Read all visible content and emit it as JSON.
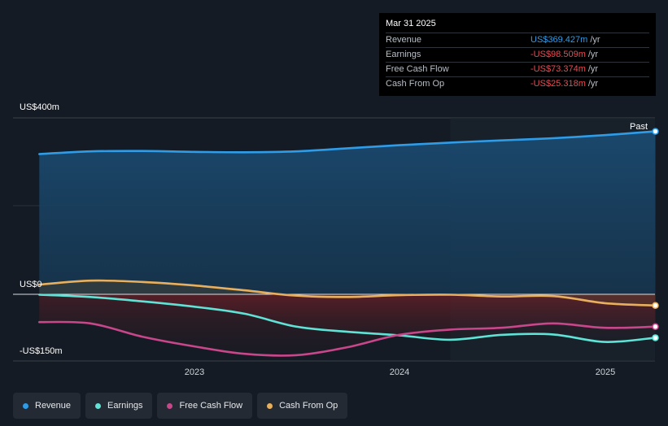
{
  "tooltip": {
    "date": "Mar 31 2025",
    "rows": [
      {
        "label": "Revenue",
        "value": "US$369.427m",
        "unit": "/yr"
      },
      {
        "label": "Earnings",
        "value": "-US$98.509m",
        "unit": "/yr"
      },
      {
        "label": "Free Cash Flow",
        "value": "-US$73.374m",
        "unit": "/yr"
      },
      {
        "label": "Cash From Op",
        "value": "-US$25.318m",
        "unit": "/yr"
      }
    ]
  },
  "y_axis_labels": {
    "top": "US$400m",
    "zero": "US$0",
    "bottom": "-US$150m"
  },
  "past_label": "Past",
  "legend": [
    {
      "label": "Revenue",
      "color": "#2f9ce8"
    },
    {
      "label": "Earnings",
      "color": "#5fe3d6"
    },
    {
      "label": "Free Cash Flow",
      "color": "#c8468a"
    },
    {
      "label": "Cash From Op",
      "color": "#e8b05e"
    }
  ],
  "chart_data": {
    "type": "area",
    "x_ticks": [
      "2023",
      "2024",
      "2025"
    ],
    "ylim": [
      -150,
      400
    ],
    "units": "US$m",
    "series": [
      {
        "name": "Revenue",
        "color": "#2f9ce8",
        "points": [
          [
            "2022-03-31",
            318
          ],
          [
            "2022-06-30",
            324
          ],
          [
            "2022-09-30",
            325
          ],
          [
            "2022-12-31",
            323
          ],
          [
            "2023-03-31",
            322
          ],
          [
            "2023-06-30",
            324
          ],
          [
            "2023-09-30",
            331
          ],
          [
            "2023-12-31",
            338
          ],
          [
            "2024-03-31",
            344
          ],
          [
            "2024-06-30",
            349
          ],
          [
            "2024-09-30",
            354
          ],
          [
            "2024-12-31",
            361
          ],
          [
            "2025-03-31",
            369.427
          ]
        ]
      },
      {
        "name": "Earnings",
        "color": "#5fe3d6",
        "points": [
          [
            "2022-03-31",
            -1
          ],
          [
            "2022-06-30",
            -6
          ],
          [
            "2022-09-30",
            -16
          ],
          [
            "2022-12-31",
            -28
          ],
          [
            "2023-03-31",
            -44
          ],
          [
            "2023-06-30",
            -73
          ],
          [
            "2023-09-30",
            -85
          ],
          [
            "2023-12-31",
            -93
          ],
          [
            "2024-03-31",
            -103
          ],
          [
            "2024-06-30",
            -92
          ],
          [
            "2024-09-30",
            -91
          ],
          [
            "2024-12-31",
            -108
          ],
          [
            "2025-03-31",
            -98.509
          ]
        ]
      },
      {
        "name": "Free Cash Flow",
        "color": "#c8468a",
        "points": [
          [
            "2022-03-31",
            -63
          ],
          [
            "2022-06-30",
            -66
          ],
          [
            "2022-09-30",
            -96
          ],
          [
            "2022-12-31",
            -118
          ],
          [
            "2023-03-31",
            -135
          ],
          [
            "2023-06-30",
            -138
          ],
          [
            "2023-09-30",
            -120
          ],
          [
            "2023-12-31",
            -92
          ],
          [
            "2024-03-31",
            -80
          ],
          [
            "2024-06-30",
            -76
          ],
          [
            "2024-09-30",
            -66
          ],
          [
            "2024-12-31",
            -76
          ],
          [
            "2025-03-31",
            -73.374
          ]
        ]
      },
      {
        "name": "Cash From Op",
        "color": "#e8b05e",
        "points": [
          [
            "2022-03-31",
            22
          ],
          [
            "2022-06-30",
            31
          ],
          [
            "2022-09-30",
            28
          ],
          [
            "2022-12-31",
            20
          ],
          [
            "2023-03-31",
            9
          ],
          [
            "2023-06-30",
            -3
          ],
          [
            "2023-09-30",
            -6
          ],
          [
            "2023-12-31",
            -2
          ],
          [
            "2024-03-31",
            -1
          ],
          [
            "2024-06-30",
            -5
          ],
          [
            "2024-09-30",
            -4
          ],
          [
            "2024-12-31",
            -20
          ],
          [
            "2025-03-31",
            -25.318
          ]
        ]
      }
    ]
  }
}
